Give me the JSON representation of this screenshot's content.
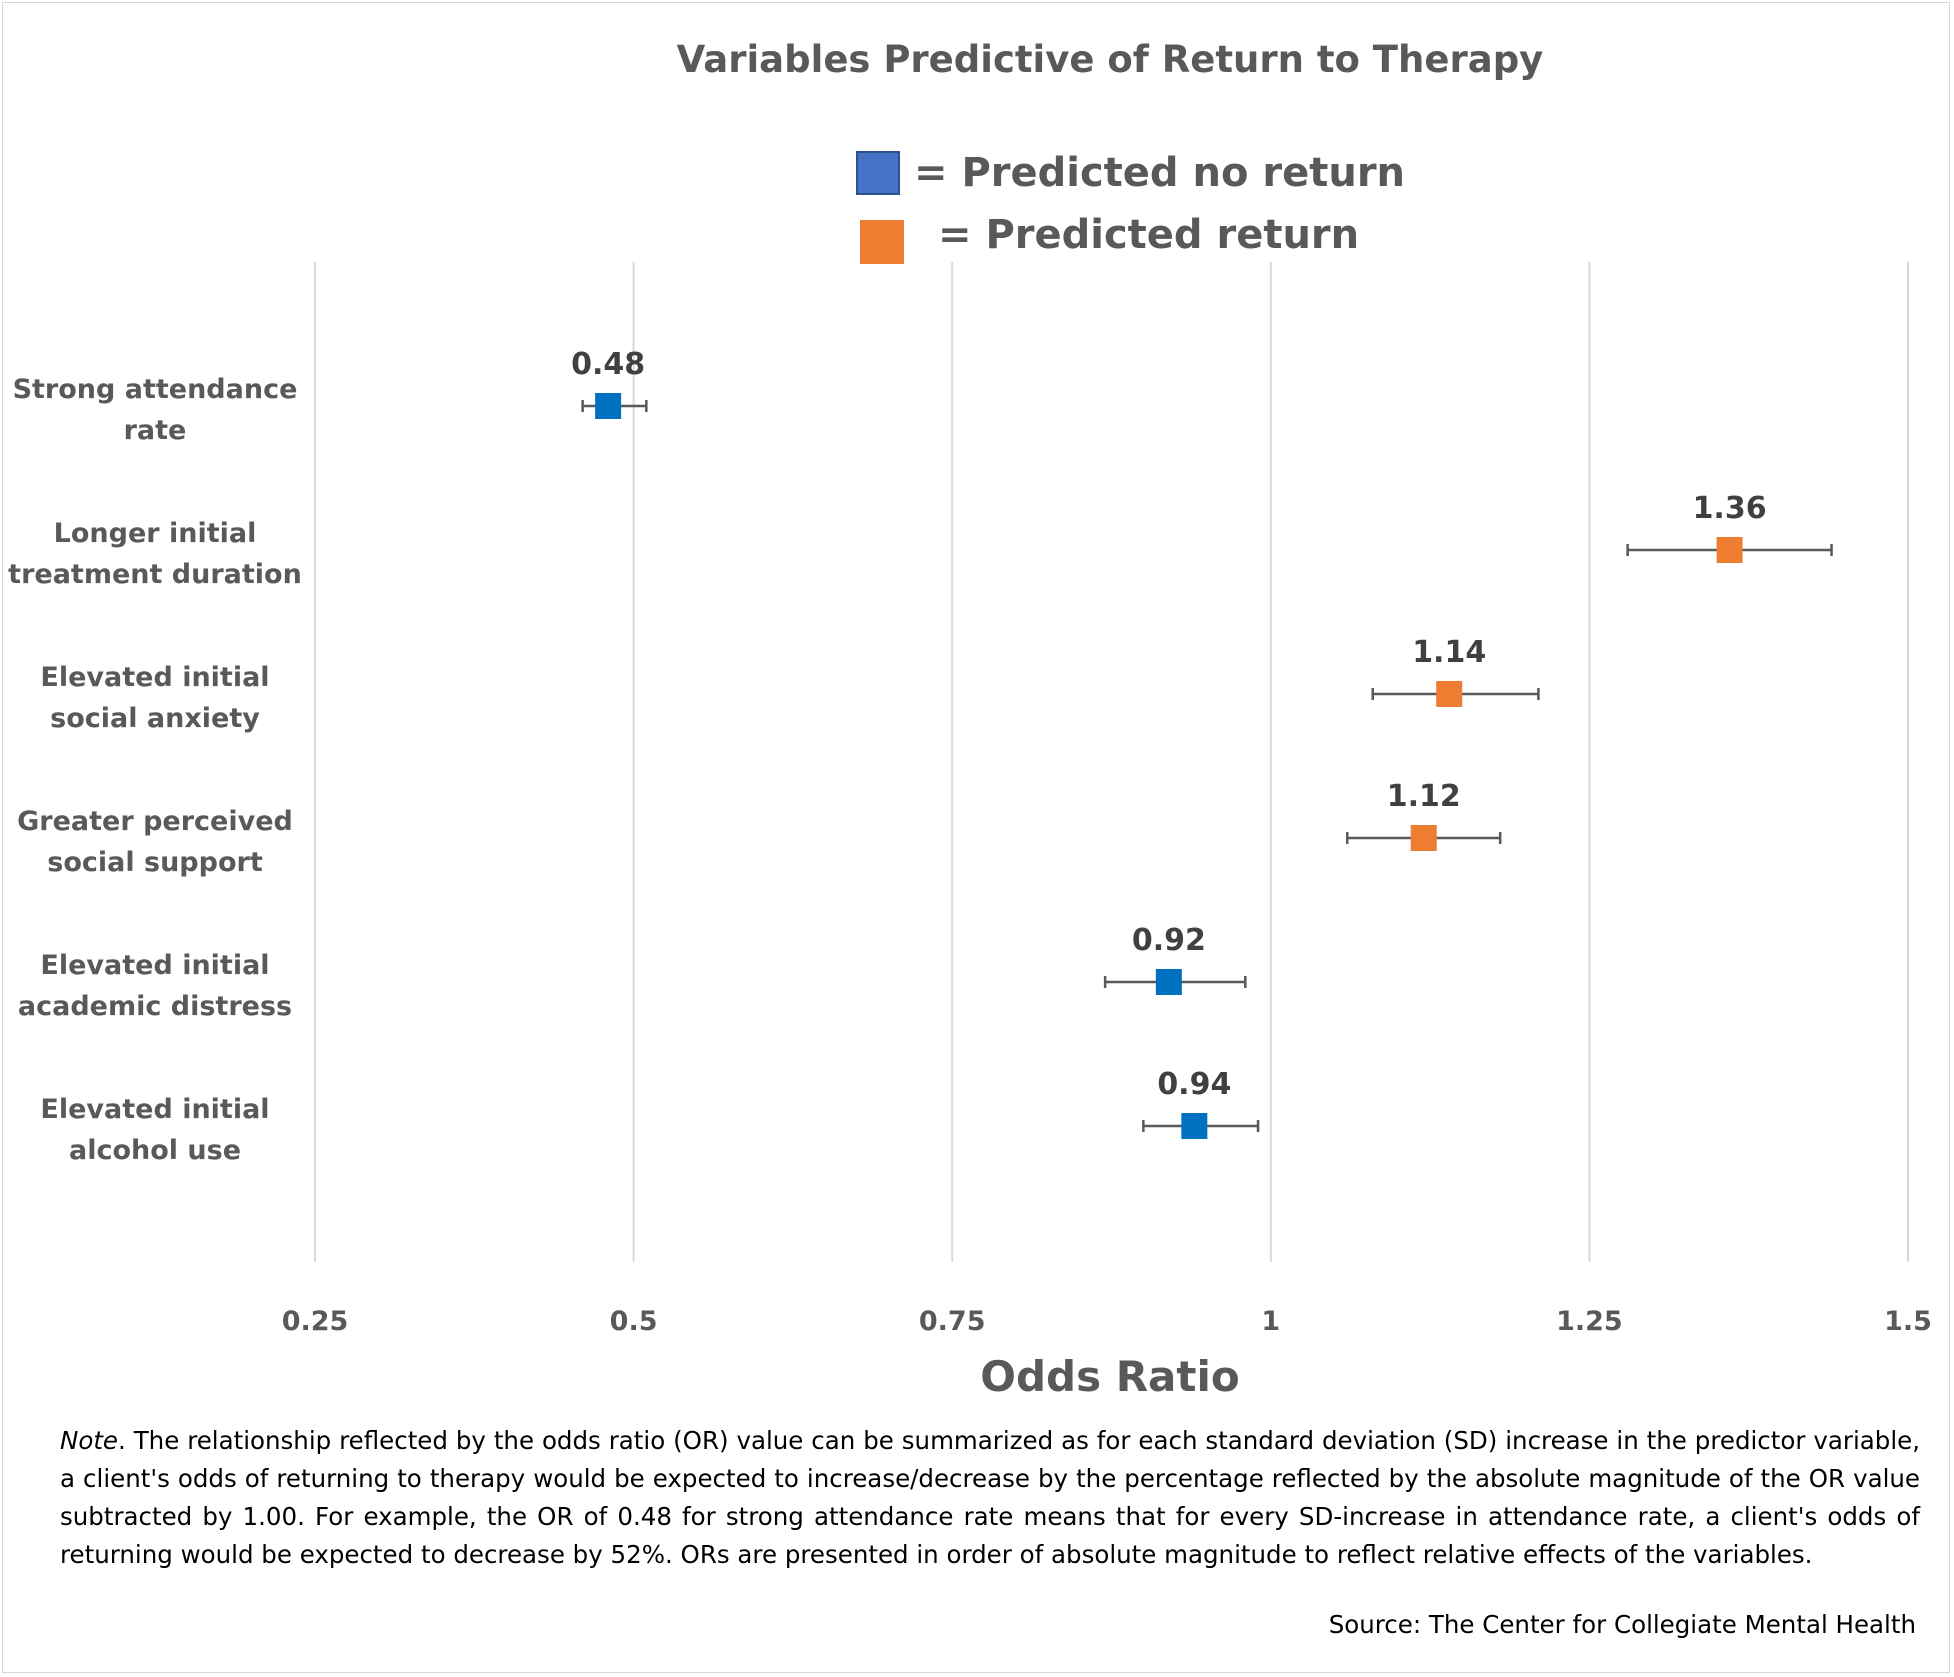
{
  "chart_data": {
    "type": "scatter",
    "title": "Variables Predictive of Return to Therapy",
    "xlabel": "Odds Ratio",
    "xlim": [
      0.25,
      1.5
    ],
    "xticks": [
      "0.25",
      "0.5",
      "0.75",
      "1",
      "1.25",
      "1.5"
    ],
    "tick_values": [
      0.25,
      0.5,
      0.75,
      1,
      1.25,
      1.5
    ],
    "grid": "vertical",
    "legend": [
      {
        "name": "= Predicted no return",
        "color": "#4472c4"
      },
      {
        "name": "= Predicted return",
        "color": "#ed7d31"
      }
    ],
    "points": [
      {
        "label_lines": [
          "Strong attendance",
          "rate"
        ],
        "or": 0.48,
        "label": "0.48",
        "ci": [
          0.46,
          0.51
        ],
        "group": "no_return"
      },
      {
        "label_lines": [
          "Longer initial",
          "treatment duration"
        ],
        "or": 1.36,
        "label": "1.36",
        "ci": [
          1.28,
          1.44
        ],
        "group": "return"
      },
      {
        "label_lines": [
          "Elevated initial",
          "social anxiety"
        ],
        "or": 1.14,
        "label": "1.14",
        "ci": [
          1.08,
          1.21
        ],
        "group": "return"
      },
      {
        "label_lines": [
          "Greater perceived",
          "social support"
        ],
        "or": 1.12,
        "label": "1.12",
        "ci": [
          1.06,
          1.18
        ],
        "group": "return"
      },
      {
        "label_lines": [
          "Elevated initial",
          "academic distress"
        ],
        "or": 0.92,
        "label": "0.92",
        "ci": [
          0.87,
          0.98
        ],
        "group": "no_return"
      },
      {
        "label_lines": [
          "Elevated initial",
          "alcohol use"
        ],
        "or": 0.94,
        "label": "0.94",
        "ci": [
          0.9,
          0.99
        ],
        "group": "no_return"
      }
    ],
    "colors": {
      "no_return": "#0070c0",
      "return": "#ed7d31",
      "grid": "#d9d9d9",
      "errorbar": "#595959"
    }
  },
  "note": {
    "lead": "Note",
    "text": ". The relationship reflected by the odds ratio (OR) value can be summarized as for each standard deviation (SD) increase in the predictor variable, a client's odds of returning to therapy would be expected to increase/decrease by the percentage reflected by the absolute magnitude of the OR value subtracted by 1.00. For example, the OR of 0.48 for strong attendance rate means that for every SD-increase in attendance rate, a client's odds of returning would be expected to decrease by 52%. ORs are presented in order of absolute magnitude to reflect relative effects of the variables."
  },
  "source": "Source: The Center for Collegiate Mental Health"
}
